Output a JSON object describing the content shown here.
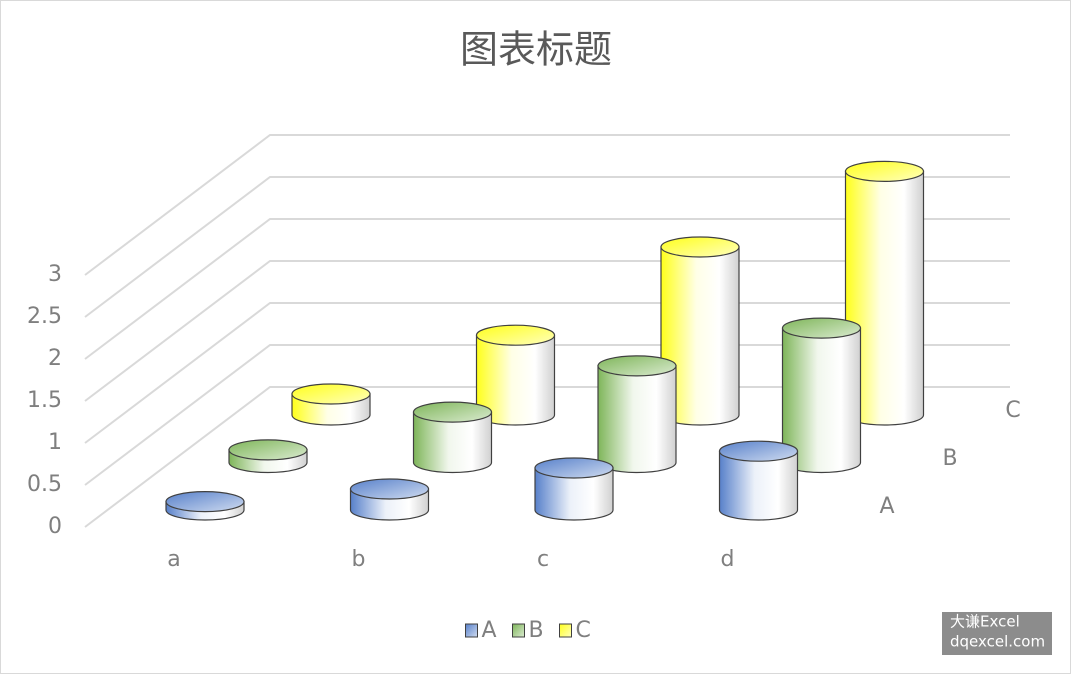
{
  "chart_data": {
    "type": "cylinder",
    "title": "图表标题",
    "categories": [
      "a",
      "b",
      "c",
      "d"
    ],
    "series": [
      {
        "name": "A",
        "color": "#4472c4",
        "values": [
          0.1,
          0.25,
          0.5,
          0.7
        ]
      },
      {
        "name": "B",
        "color": "#70ad47",
        "values": [
          0.15,
          0.6,
          1.15,
          1.6
        ]
      },
      {
        "name": "C",
        "color": "#ffff00",
        "values": [
          0.25,
          0.95,
          2,
          2.9
        ]
      }
    ],
    "ylim": [
      0,
      3
    ],
    "yticks": [
      0,
      0.5,
      1,
      1.5,
      2,
      2.5,
      3
    ],
    "grid": true,
    "legend": "bottom"
  },
  "watermark": {
    "line1": "大谦Excel",
    "line2": "dqexcel.com"
  }
}
